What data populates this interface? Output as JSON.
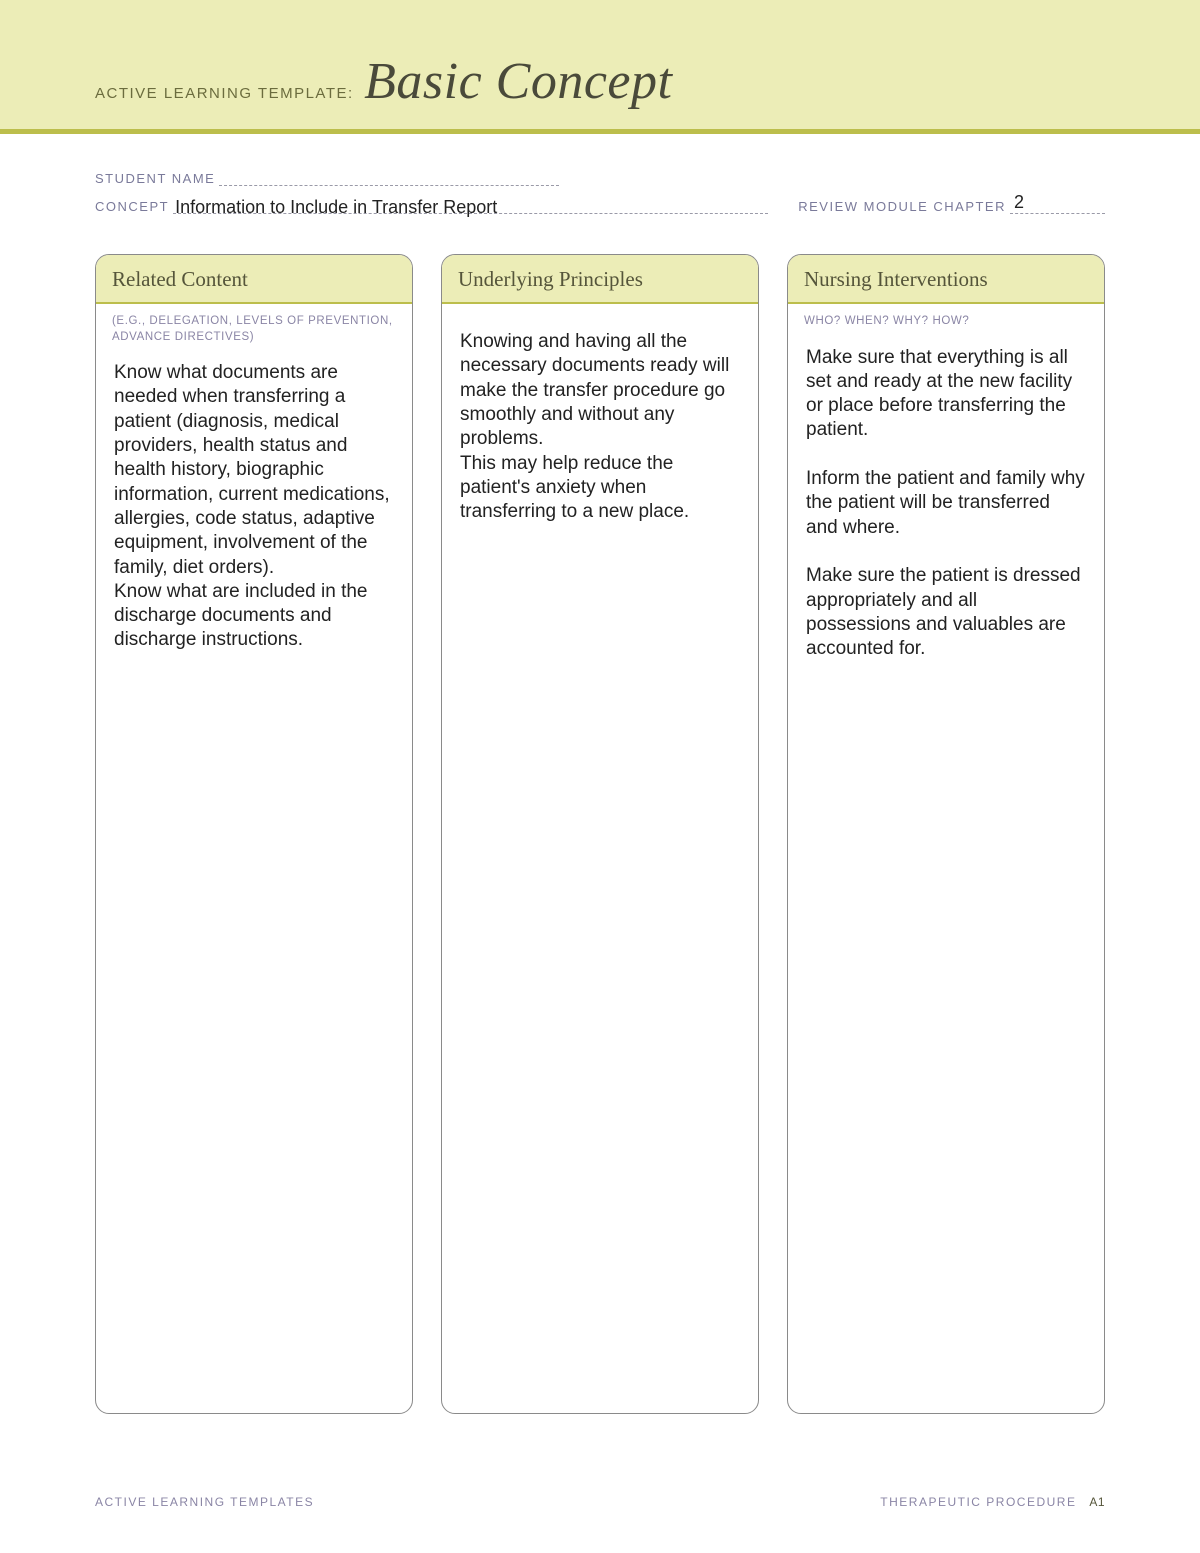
{
  "header": {
    "template_label": "ACTIVE LEARNING TEMPLATE:",
    "title": "Basic Concept"
  },
  "meta": {
    "student_name_label": "STUDENT NAME",
    "student_name_value": "",
    "concept_label": "CONCEPT",
    "concept_value": "Information to Include in Transfer Report",
    "chapter_label": "REVIEW MODULE CHAPTER",
    "chapter_value": "2"
  },
  "columns": [
    {
      "title": "Related Content",
      "subtitle": "(E.G., DELEGATION,\nLEVELS OF PREVENTION,\nADVANCE DIRECTIVES)",
      "body": "Know what documents are needed when transferring a patient (diagnosis, medical providers, health status and health history, biographic information, current medications, allergies, code status, adaptive equipment, involvement of the family, diet orders).\nKnow what are included in the discharge documents and discharge instructions."
    },
    {
      "title": "Underlying Principles",
      "subtitle": "",
      "body": "Knowing and having all the necessary documents ready will make the transfer procedure go smoothly and without any problems.\nThis may help reduce the patient's anxiety when transferring to a new place."
    },
    {
      "title": "Nursing Interventions",
      "subtitle": "WHO? WHEN? WHY? HOW?",
      "body": "Make sure that everything is all set and ready at the new facility or place before transferring the patient.\n\nInform the patient and family why the patient will be transferred and where.\n\nMake sure the patient is dressed appropriately and all possessions and valuables are accounted for."
    }
  ],
  "footer": {
    "left": "ACTIVE LEARNING TEMPLATES",
    "right": "THERAPEUTIC PROCEDURE",
    "page": "A1"
  },
  "colors": {
    "band_bg": "#ecedb7",
    "band_border": "#bcbe4c",
    "label_text": "#7a7a9a",
    "title_text": "#4a4a3a",
    "col_border": "#8a8a8a"
  }
}
